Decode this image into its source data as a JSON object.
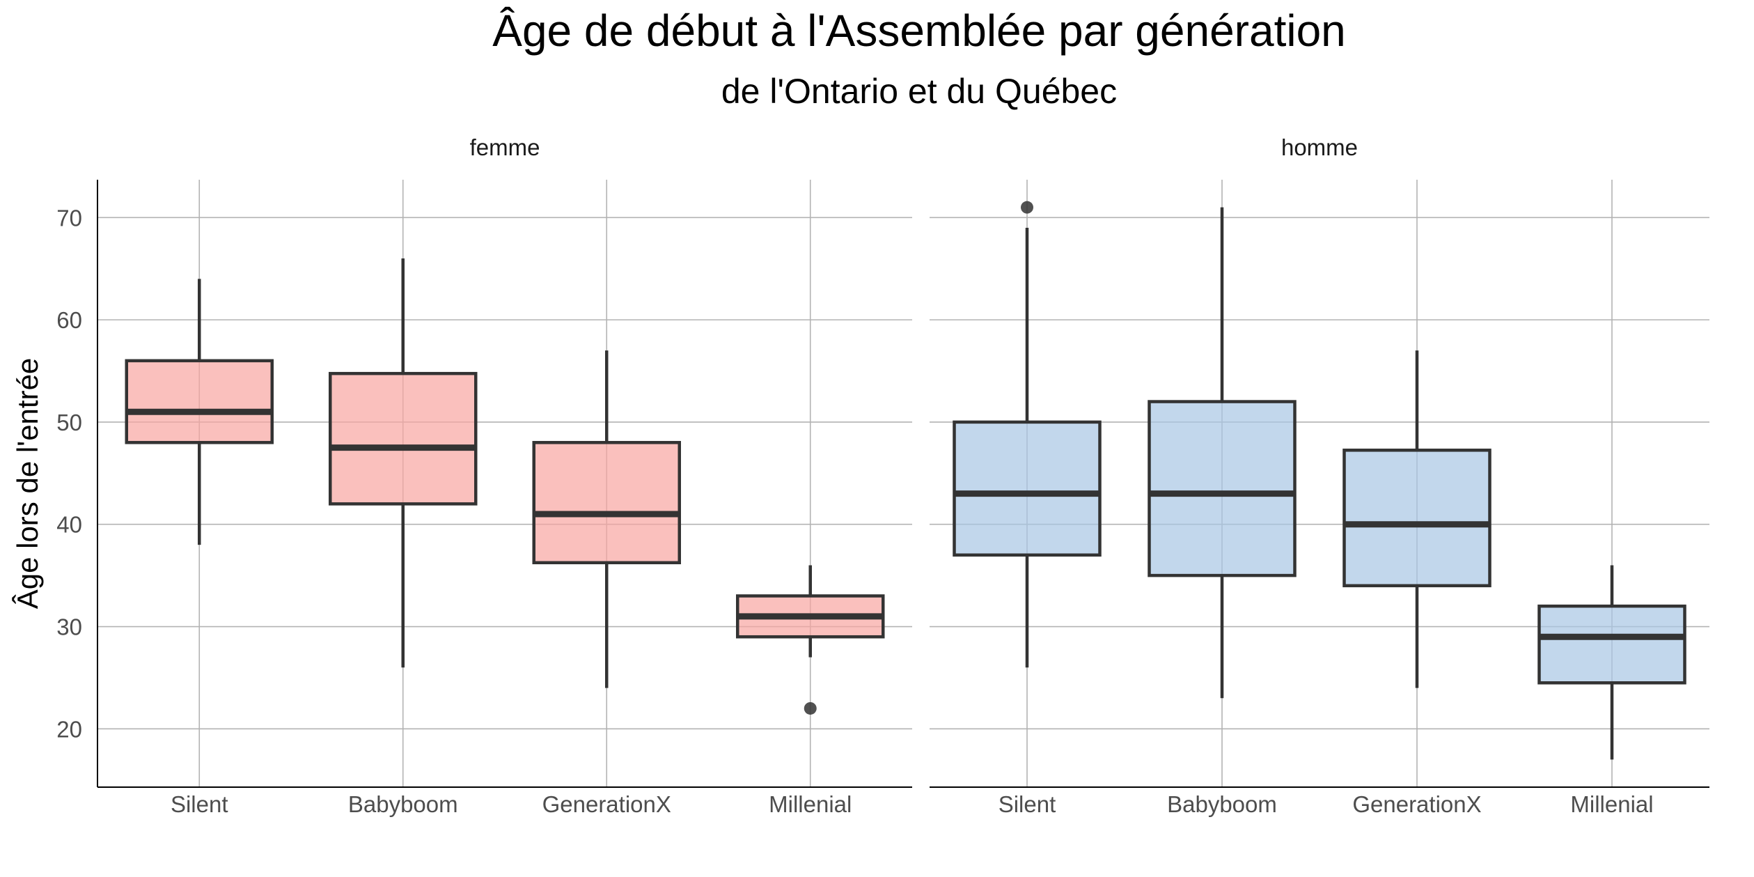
{
  "chart_data": {
    "type": "boxplot",
    "title": "Âge de début à l'Assemblée par génération",
    "subtitle": "de l'Ontario et du Québec",
    "ylabel": "Âge lors de l'entrée",
    "xlabel": "",
    "ylim": [
      14.3,
      73.7
    ],
    "yticks": [
      20,
      30,
      40,
      50,
      60,
      70
    ],
    "categories": [
      "Silent",
      "Babyboom",
      "GenerationX",
      "Millenial"
    ],
    "grid": true,
    "legend": "none",
    "panels": [
      {
        "name": "femme",
        "fill": "#f8a5a1",
        "boxes": [
          {
            "category": "Silent",
            "whisker_low": 38,
            "q1": 48,
            "median": 51,
            "q3": 56,
            "whisker_high": 64,
            "outliers": []
          },
          {
            "category": "Babyboom",
            "whisker_low": 26,
            "q1": 42,
            "median": 47.5,
            "q3": 54.75,
            "whisker_high": 66,
            "outliers": []
          },
          {
            "category": "GenerationX",
            "whisker_low": 24,
            "q1": 36.25,
            "median": 41,
            "q3": 48,
            "whisker_high": 57,
            "outliers": []
          },
          {
            "category": "Millenial",
            "whisker_low": 27,
            "q1": 29,
            "median": 31,
            "q3": 33,
            "whisker_high": 36,
            "outliers": [
              22
            ]
          }
        ]
      },
      {
        "name": "homme",
        "fill": "#a8c6e4",
        "boxes": [
          {
            "category": "Silent",
            "whisker_low": 26,
            "q1": 37,
            "median": 43,
            "q3": 50,
            "whisker_high": 69,
            "outliers": [
              71
            ]
          },
          {
            "category": "Babyboom",
            "whisker_low": 23,
            "q1": 35,
            "median": 43,
            "q3": 52,
            "whisker_high": 71,
            "outliers": []
          },
          {
            "category": "GenerationX",
            "whisker_low": 24,
            "q1": 34,
            "median": 40,
            "q3": 47.25,
            "whisker_high": 57,
            "outliers": []
          },
          {
            "category": "Millenial",
            "whisker_low": 17,
            "q1": 24.5,
            "median": 29,
            "q3": 32,
            "whisker_high": 36,
            "outliers": []
          }
        ]
      }
    ]
  }
}
